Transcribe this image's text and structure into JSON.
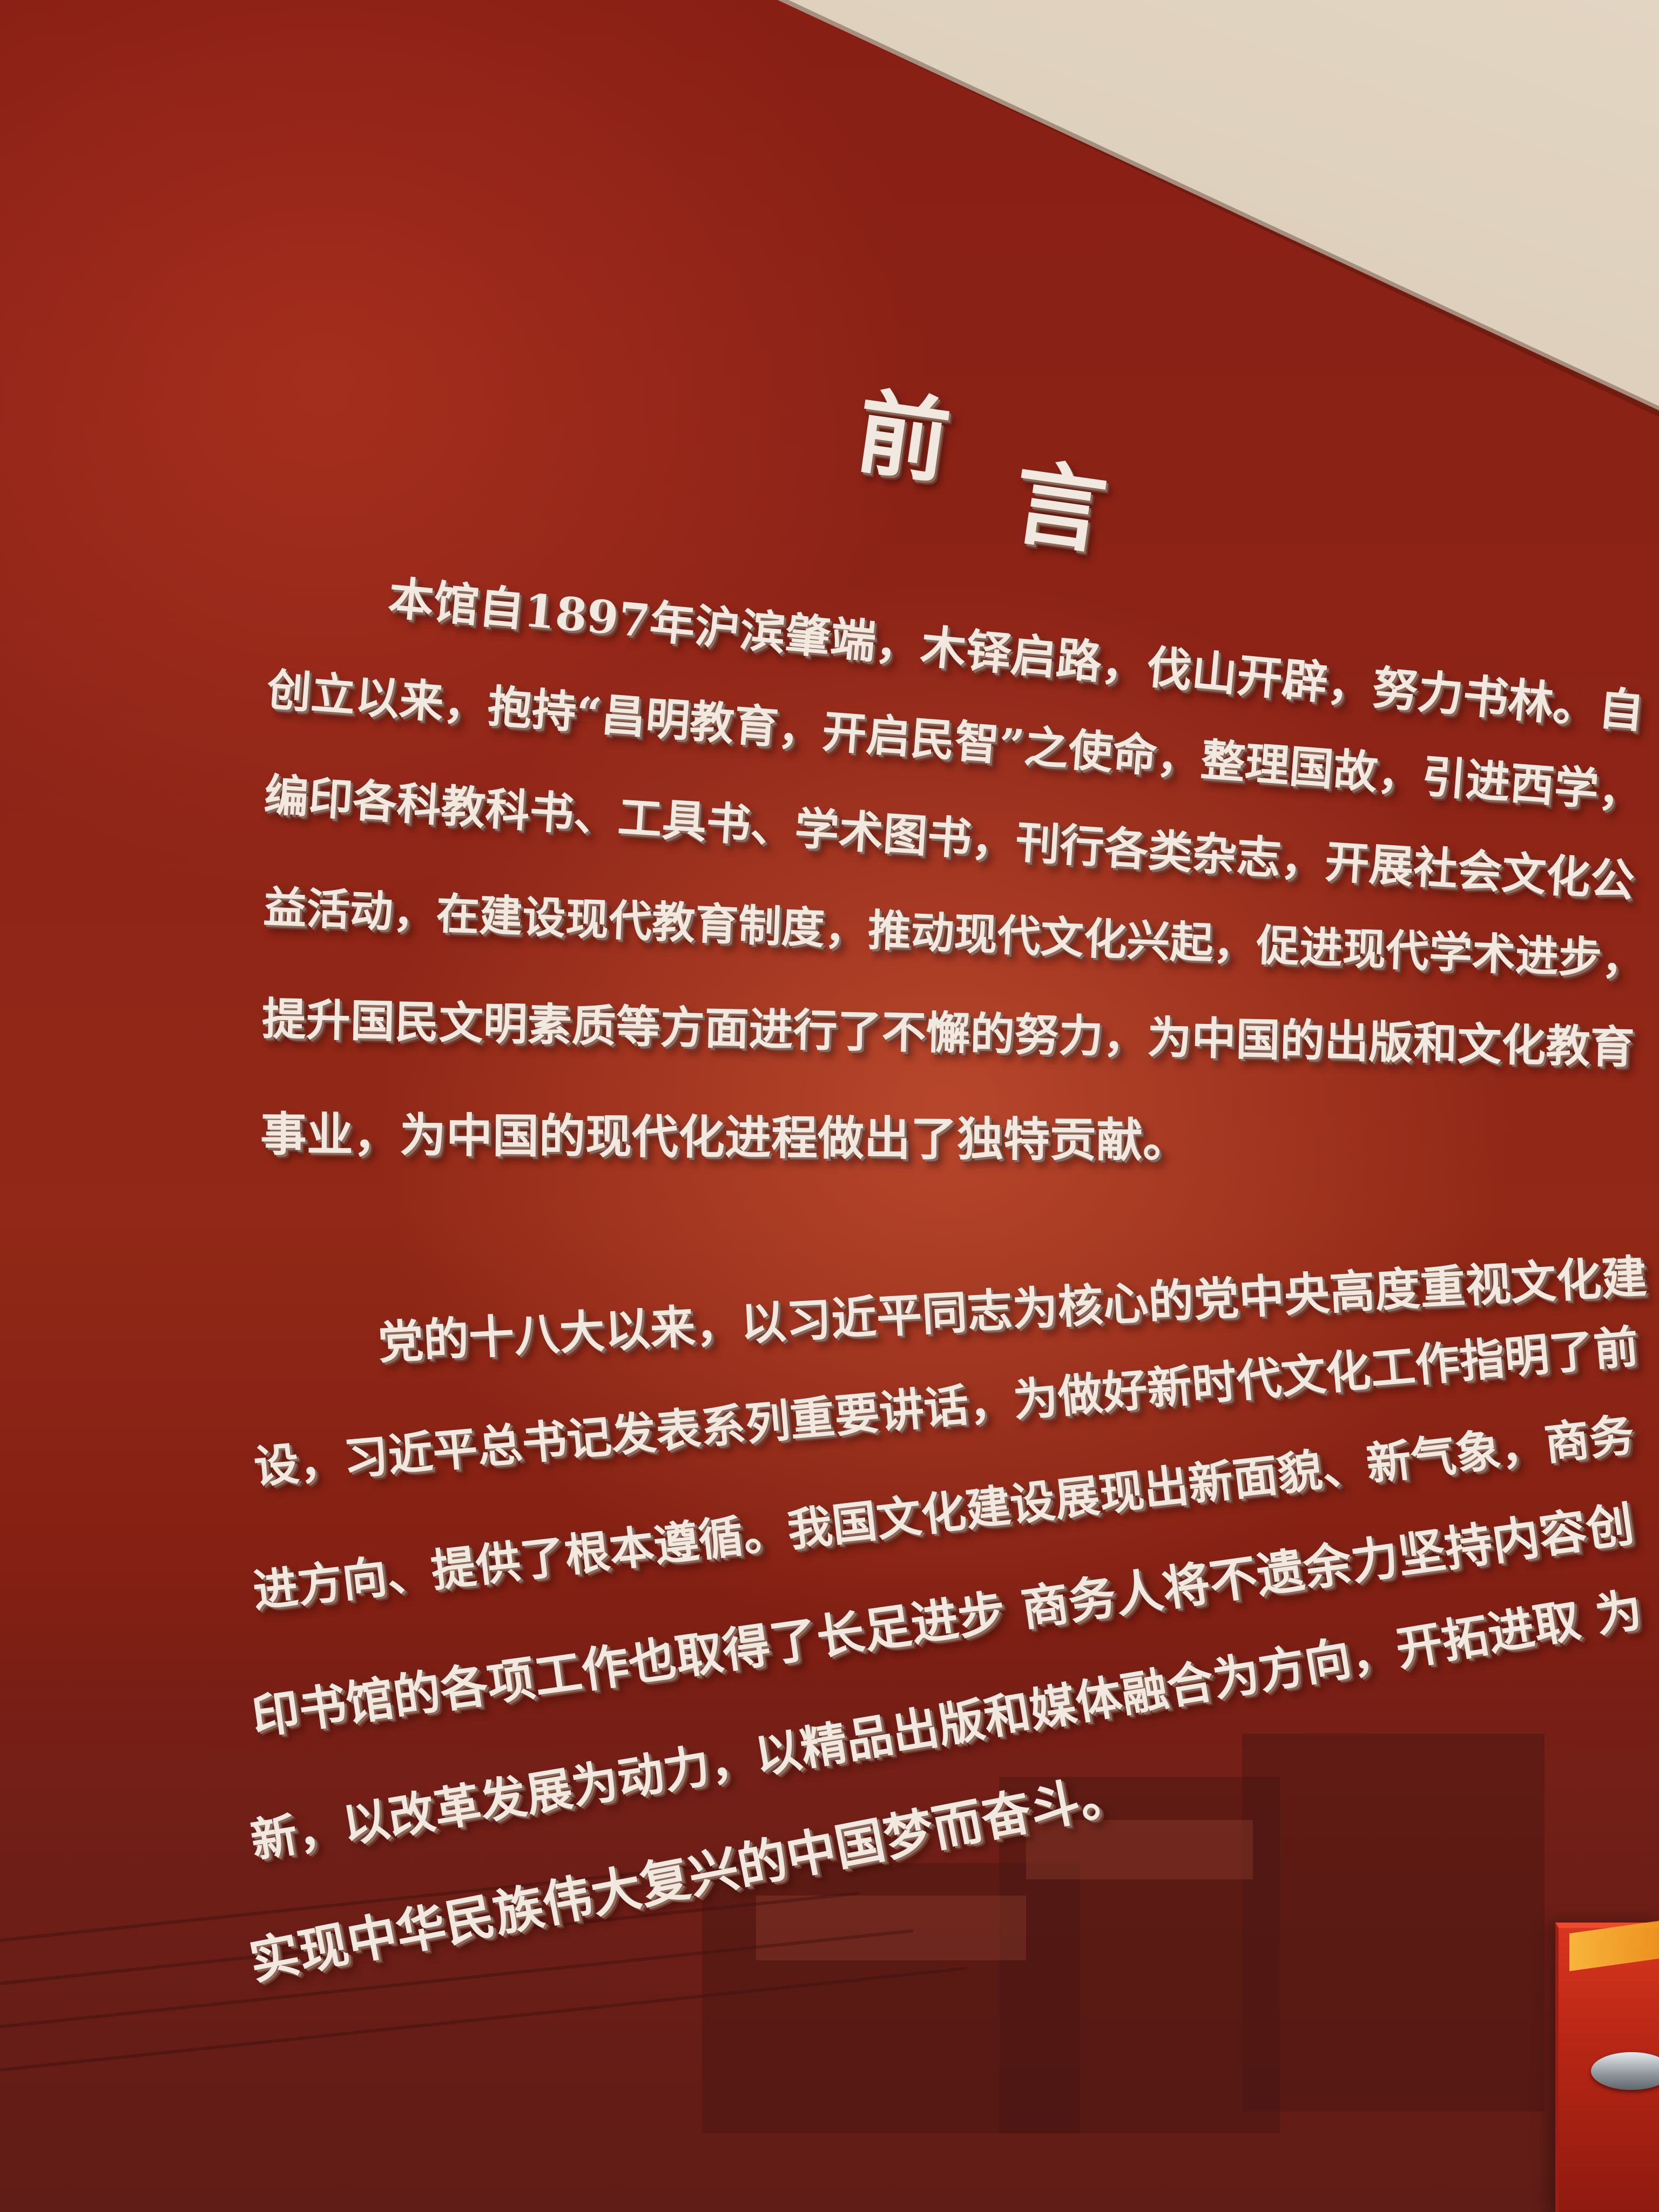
{
  "heading": {
    "char1": "前",
    "char2": "言"
  },
  "paragraph1": {
    "lines": [
      "本馆自1897年沪滨肇端，木铎启路，伐山开辟，努力书林。自",
      "创立以来，抱持“昌明教育，开启民智”之使命，整理国故，引进西学，",
      "编印各科教科书、工具书、学术图书，刊行各类杂志，开展社会文化公",
      "益活动，在建设现代教育制度，推动现代文化兴起，促进现代学术进步，",
      "提升国民文明素质等方面进行了不懈的努力，为中国的出版和文化教育",
      "事业，为中国的现代化进程做出了独特贡献。"
    ]
  },
  "paragraph2": {
    "lines": [
      "党的十八大以来，以习近平同志为核心的党中央高度重视文化建",
      "设，习近平总书记发表系列重要讲话，为做好新时代文化工作指明了前",
      "进方向、提供了根本遵循。我国文化建设展现出新面貌、新气象，商务",
      "印书馆的各项工作也取得了长足进步 商务人将不遗余力坚持内容创",
      "新，以改革发展为动力，以精品出版和媒体融合为方向，开拓进取 为",
      "实现中华民族伟大复兴的中国梦而奋斗。"
    ]
  },
  "colors": {
    "wall": "#a8321f",
    "text": "#f1e9df",
    "ceiling": "#d6c7b1",
    "case": "#c42a18"
  }
}
